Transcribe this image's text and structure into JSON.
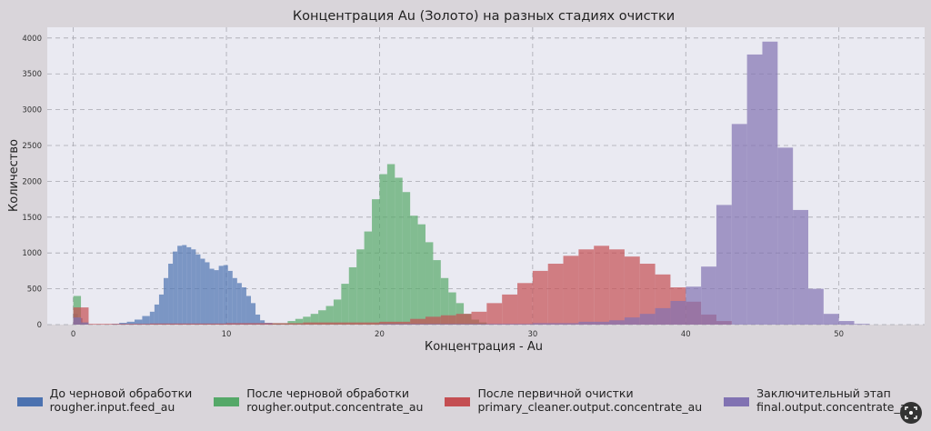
{
  "chart_data": {
    "type": "bar",
    "title": "Концентрация Au (Золото) на разных стадиях очистки",
    "xlabel": "Концентрация - Au",
    "ylabel": "Количество",
    "xlim": [
      -1.7,
      55.6
    ],
    "ylim": [
      0,
      4150
    ],
    "xticks": [
      0,
      10,
      20,
      30,
      40,
      50
    ],
    "yticks": [
      0,
      500,
      1000,
      1500,
      2000,
      2500,
      3000,
      3500,
      4000
    ],
    "grid": true,
    "legend_position": "bottom",
    "series": [
      {
        "name": "До черновой обработки",
        "field": "rougher.input.feed_au",
        "color": "#4c72b0",
        "bins": [
          [
            0,
            0.3,
            150
          ],
          [
            0.3,
            0.6,
            90
          ],
          [
            0.6,
            0.9,
            20
          ],
          [
            2.5,
            3,
            10
          ],
          [
            3,
            3.5,
            25
          ],
          [
            3.5,
            4,
            40
          ],
          [
            4,
            4.5,
            70
          ],
          [
            4.5,
            5,
            120
          ],
          [
            5,
            5.3,
            180
          ],
          [
            5.3,
            5.6,
            280
          ],
          [
            5.6,
            5.9,
            420
          ],
          [
            5.9,
            6.2,
            650
          ],
          [
            6.2,
            6.5,
            850
          ],
          [
            6.5,
            6.8,
            1020
          ],
          [
            6.8,
            7.1,
            1100
          ],
          [
            7.1,
            7.4,
            1110
          ],
          [
            7.4,
            7.7,
            1080
          ],
          [
            7.7,
            8.0,
            1050
          ],
          [
            8.0,
            8.3,
            980
          ],
          [
            8.3,
            8.6,
            920
          ],
          [
            8.6,
            8.9,
            870
          ],
          [
            8.9,
            9.2,
            780
          ],
          [
            9.2,
            9.5,
            760
          ],
          [
            9.5,
            9.8,
            820
          ],
          [
            9.8,
            10.1,
            830
          ],
          [
            10.1,
            10.4,
            750
          ],
          [
            10.4,
            10.7,
            650
          ],
          [
            10.7,
            11.0,
            580
          ],
          [
            11.0,
            11.3,
            520
          ],
          [
            11.3,
            11.6,
            400
          ],
          [
            11.6,
            11.9,
            300
          ],
          [
            11.9,
            12.2,
            140
          ],
          [
            12.2,
            12.5,
            60
          ],
          [
            12.5,
            13,
            25
          ],
          [
            13,
            13.5,
            10
          ]
        ]
      },
      {
        "name": "После черновой обработки",
        "field": "rougher.output.concentrate_au",
        "color": "#55a868",
        "bins": [
          [
            0,
            0.5,
            400
          ],
          [
            0.5,
            1,
            30
          ],
          [
            13,
            14,
            20
          ],
          [
            14,
            14.5,
            50
          ],
          [
            14.5,
            15,
            80
          ],
          [
            15,
            15.5,
            110
          ],
          [
            15.5,
            16,
            150
          ],
          [
            16,
            16.5,
            200
          ],
          [
            16.5,
            17,
            260
          ],
          [
            17,
            17.5,
            350
          ],
          [
            17.5,
            18,
            570
          ],
          [
            18,
            18.5,
            800
          ],
          [
            18.5,
            19,
            1050
          ],
          [
            19,
            19.5,
            1300
          ],
          [
            19.5,
            20,
            1750
          ],
          [
            20,
            20.5,
            2100
          ],
          [
            20.5,
            21,
            2240
          ],
          [
            21,
            21.5,
            2050
          ],
          [
            21.5,
            22,
            1850
          ],
          [
            22,
            22.5,
            1520
          ],
          [
            22.5,
            23,
            1400
          ],
          [
            23,
            23.5,
            1150
          ],
          [
            23.5,
            24,
            900
          ],
          [
            24,
            24.5,
            650
          ],
          [
            24.5,
            25,
            450
          ],
          [
            25,
            25.5,
            300
          ],
          [
            25.5,
            26,
            150
          ],
          [
            26,
            26.5,
            70
          ],
          [
            26.5,
            27,
            30
          ]
        ]
      },
      {
        "name": "После первичной очистки",
        "field": "primary_cleaner.output.concentrate_au",
        "color": "#c44e52",
        "bins": [
          [
            0,
            1,
            240
          ],
          [
            1,
            5,
            10
          ],
          [
            5,
            10,
            15
          ],
          [
            10,
            15,
            20
          ],
          [
            15,
            20,
            30
          ],
          [
            20,
            22,
            40
          ],
          [
            22,
            23,
            80
          ],
          [
            23,
            24,
            110
          ],
          [
            24,
            25,
            130
          ],
          [
            25,
            26,
            150
          ],
          [
            26,
            27,
            180
          ],
          [
            27,
            28,
            300
          ],
          [
            28,
            29,
            420
          ],
          [
            29,
            30,
            580
          ],
          [
            30,
            31,
            750
          ],
          [
            31,
            32,
            850
          ],
          [
            32,
            33,
            960
          ],
          [
            33,
            34,
            1050
          ],
          [
            34,
            35,
            1100
          ],
          [
            35,
            36,
            1050
          ],
          [
            36,
            37,
            950
          ],
          [
            37,
            38,
            850
          ],
          [
            38,
            39,
            700
          ],
          [
            39,
            40,
            520
          ],
          [
            40,
            41,
            320
          ],
          [
            41,
            42,
            140
          ],
          [
            42,
            43,
            50
          ]
        ]
      },
      {
        "name": "Заключительный этап",
        "field": "final.output.concentrate_au",
        "color": "#8172b2",
        "bins": [
          [
            0,
            0.5,
            100
          ],
          [
            0.5,
            1,
            30
          ],
          [
            20,
            30,
            10
          ],
          [
            30,
            33,
            20
          ],
          [
            33,
            35,
            40
          ],
          [
            35,
            36,
            60
          ],
          [
            36,
            37,
            100
          ],
          [
            37,
            38,
            150
          ],
          [
            38,
            39,
            230
          ],
          [
            39,
            40,
            330
          ],
          [
            40,
            41,
            530
          ],
          [
            41,
            42,
            810
          ],
          [
            42,
            43,
            1670
          ],
          [
            43,
            44,
            2800
          ],
          [
            44,
            45,
            3770
          ],
          [
            45,
            46,
            3950
          ],
          [
            46,
            47,
            2470
          ],
          [
            47,
            48,
            1600
          ],
          [
            48,
            49,
            500
          ],
          [
            49,
            50,
            150
          ],
          [
            50,
            51,
            50
          ],
          [
            51,
            52,
            10
          ]
        ]
      }
    ]
  }
}
